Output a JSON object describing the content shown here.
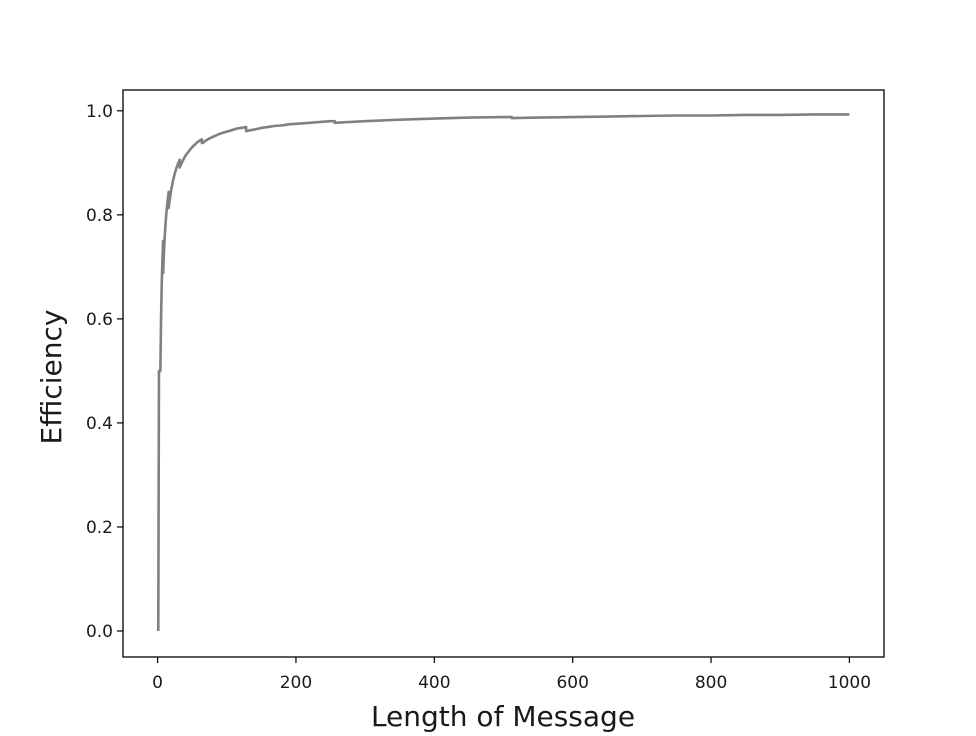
{
  "chart_data": {
    "type": "line",
    "title": "",
    "xlabel": "Length of Message",
    "ylabel": "Efficiency",
    "xlim": [
      -50,
      1050
    ],
    "ylim": [
      -0.05,
      1.04
    ],
    "xticks": [
      0,
      200,
      400,
      600,
      800,
      1000
    ],
    "xtick_labels": [
      "0",
      "200",
      "400",
      "600",
      "800",
      "1000"
    ],
    "yticks": [
      0.0,
      0.2,
      0.4,
      0.6,
      0.8,
      1.0
    ],
    "ytick_labels": [
      "0.0",
      "0.2",
      "0.4",
      "0.6",
      "0.8",
      "1.0"
    ],
    "grid": false,
    "legend": "none",
    "series": [
      {
        "color": "#808080",
        "x": [
          1,
          2,
          2,
          3,
          4,
          4,
          5,
          6,
          7,
          8,
          8,
          9,
          10,
          11,
          12,
          13,
          14,
          15,
          16,
          16,
          17,
          18,
          20,
          22,
          24,
          26,
          28,
          30,
          31,
          32,
          32,
          34,
          36,
          38,
          40,
          42,
          44,
          46,
          48,
          50,
          52,
          54,
          56,
          58,
          60,
          62,
          64,
          64,
          66,
          70,
          75,
          80,
          85,
          90,
          95,
          100,
          105,
          110,
          115,
          120,
          125,
          128,
          128,
          135,
          140,
          150,
          160,
          170,
          180,
          190,
          200,
          210,
          220,
          230,
          240,
          250,
          256,
          256,
          270,
          300,
          350,
          400,
          450,
          500,
          512,
          512,
          550,
          600,
          650,
          700,
          750,
          800,
          850,
          900,
          950,
          1000
        ],
        "y": [
          0.0,
          0.5,
          0.5,
          0.5,
          0.5,
          0.5,
          0.6,
          0.667,
          0.714,
          0.75,
          0.688,
          0.722,
          0.75,
          0.773,
          0.792,
          0.808,
          0.821,
          0.833,
          0.844,
          0.813,
          0.824,
          0.833,
          0.85,
          0.864,
          0.875,
          0.885,
          0.893,
          0.9,
          0.903,
          0.906,
          0.891,
          0.897,
          0.903,
          0.908,
          0.913,
          0.917,
          0.92,
          0.924,
          0.927,
          0.93,
          0.933,
          0.935,
          0.938,
          0.94,
          0.942,
          0.944,
          0.945,
          0.938,
          0.939,
          0.943,
          0.947,
          0.95,
          0.953,
          0.956,
          0.958,
          0.96,
          0.962,
          0.964,
          0.966,
          0.967,
          0.968,
          0.969,
          0.961,
          0.963,
          0.964,
          0.967,
          0.969,
          0.971,
          0.972,
          0.974,
          0.975,
          0.976,
          0.977,
          0.978,
          0.979,
          0.98,
          0.98,
          0.977,
          0.978,
          0.98,
          0.983,
          0.985,
          0.987,
          0.988,
          0.988,
          0.986,
          0.987,
          0.988,
          0.989,
          0.99,
          0.991,
          0.991,
          0.992,
          0.992,
          0.993,
          0.993
        ]
      }
    ]
  }
}
